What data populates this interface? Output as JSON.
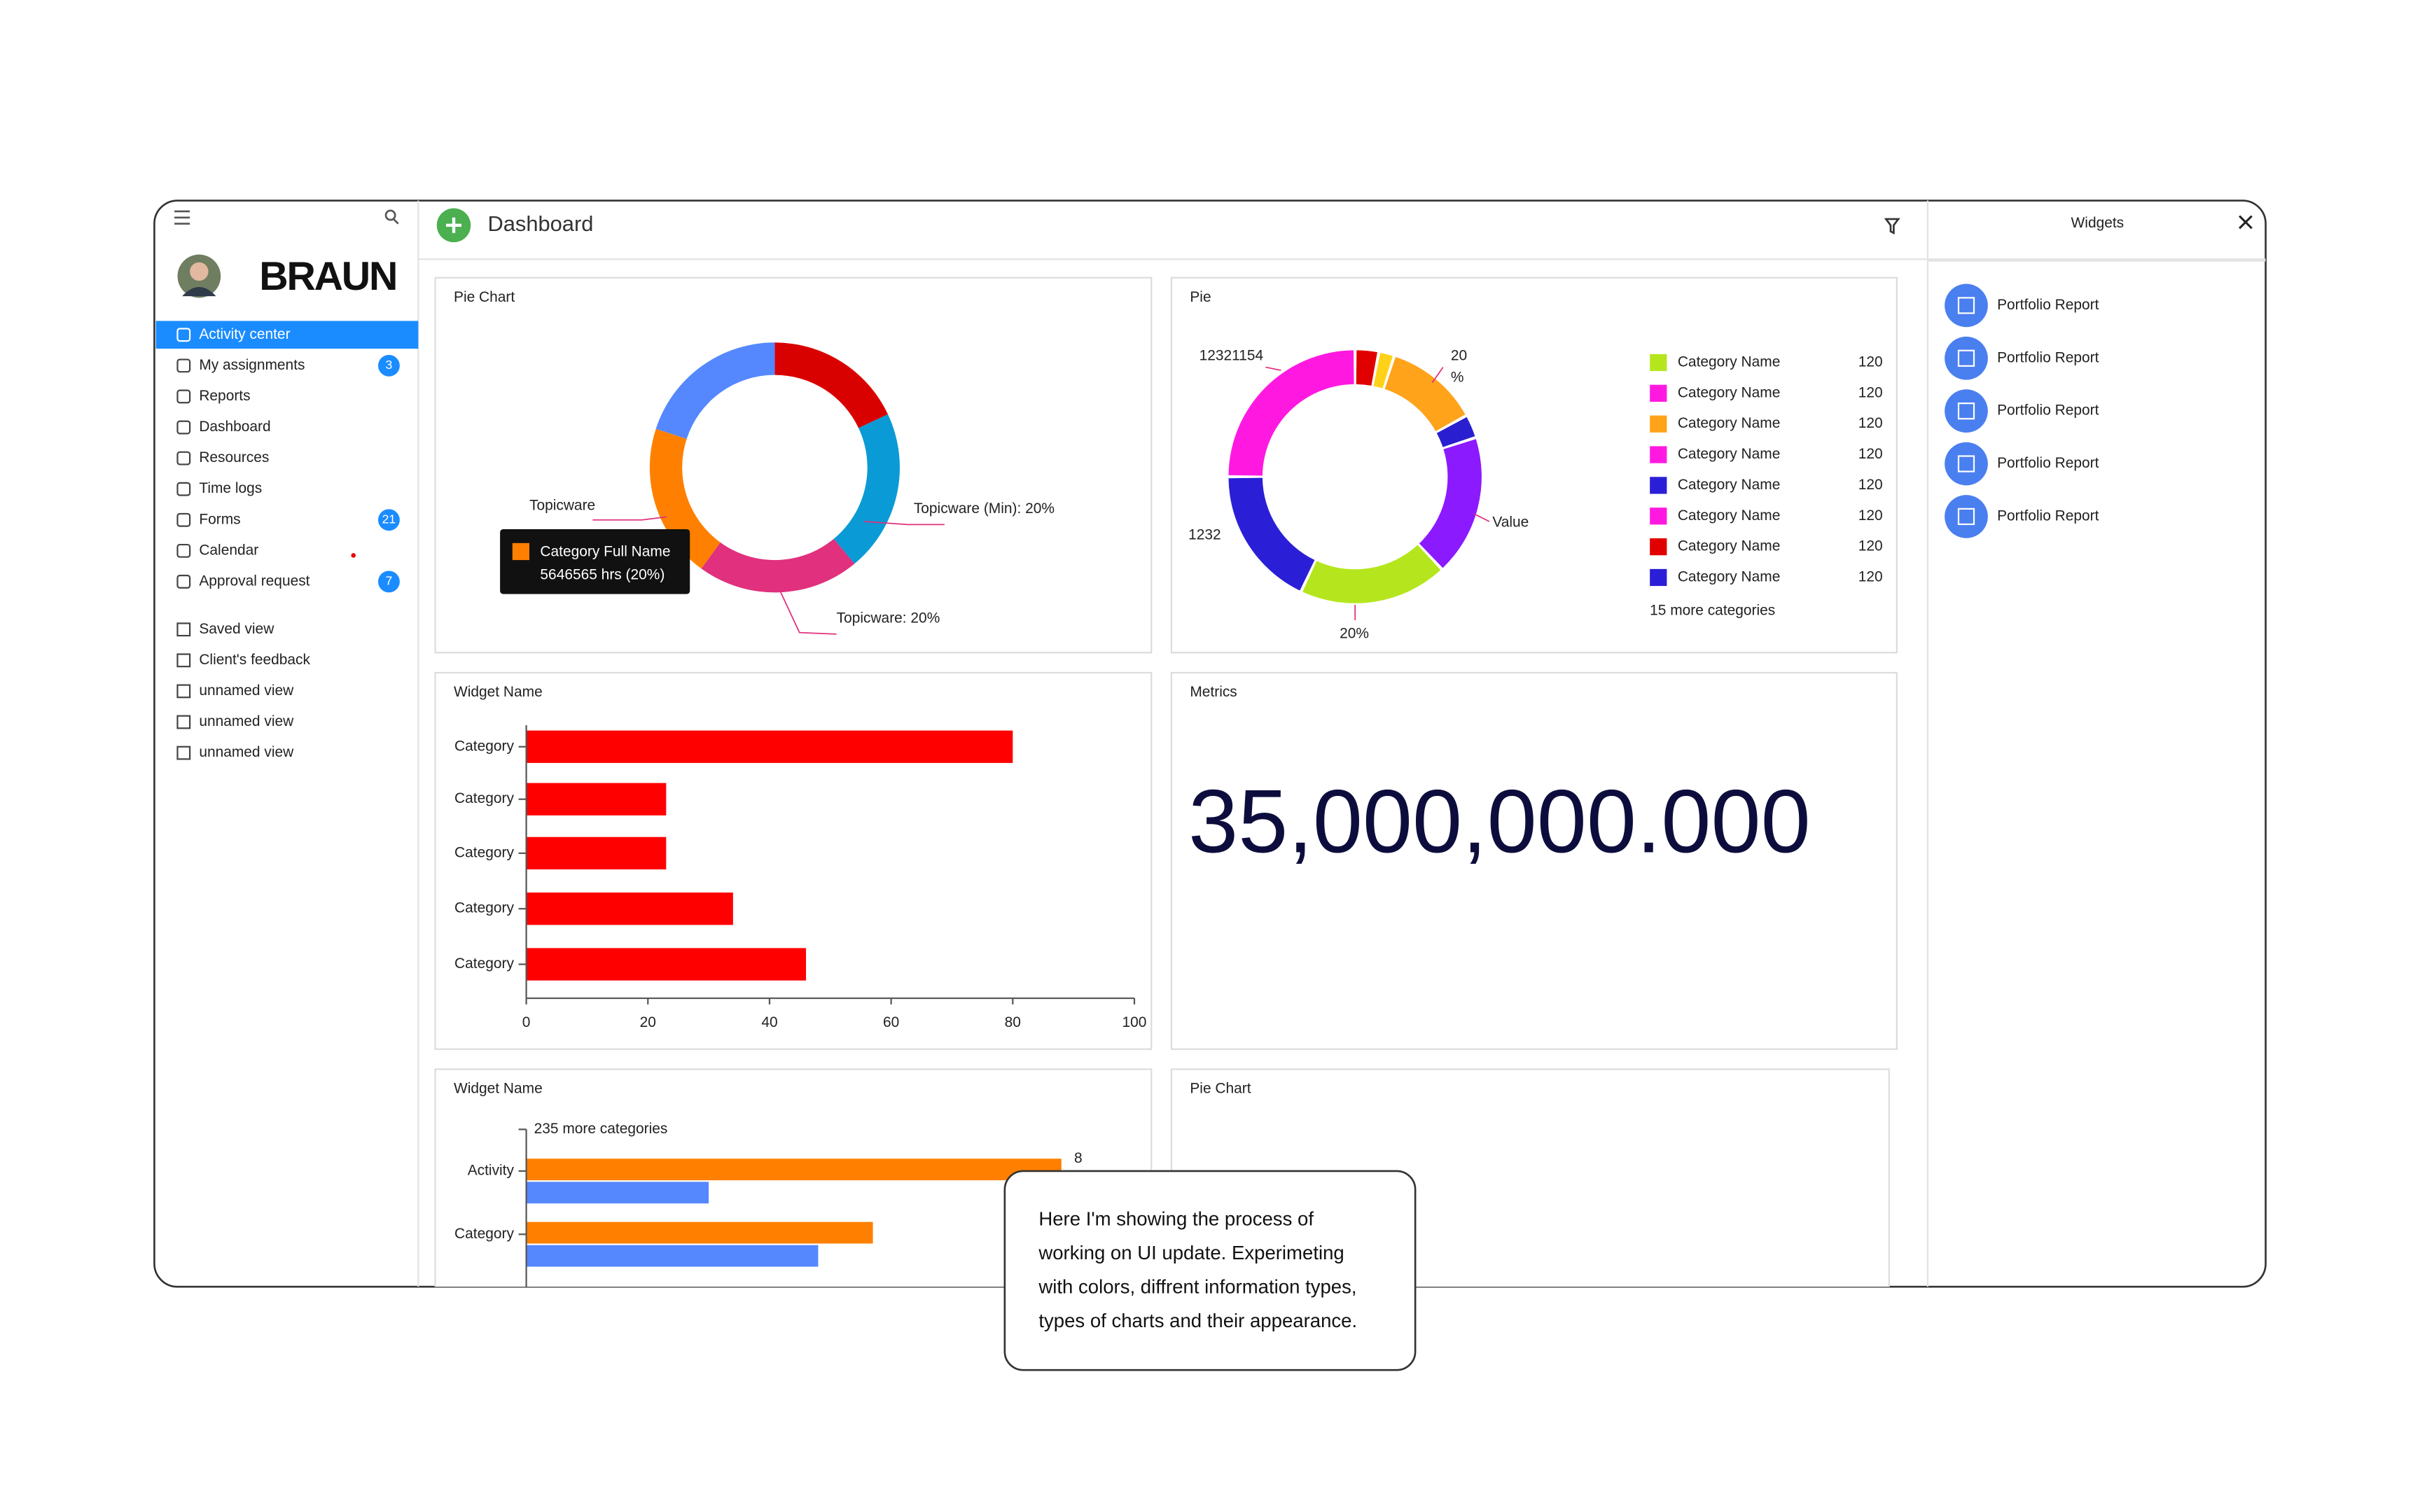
{
  "brand": "BRAUN",
  "header": {
    "title": "Dashboard"
  },
  "sidebar": {
    "nav": [
      {
        "label": "Activity center"
      },
      {
        "label": "My assignments",
        "badge": 3
      },
      {
        "label": "Reports"
      },
      {
        "label": "Dashboard"
      },
      {
        "label": "Resources"
      },
      {
        "label": "Time logs"
      },
      {
        "label": "Forms",
        "badge": 21
      },
      {
        "label": "Calendar"
      },
      {
        "label": "Approval request",
        "badge": 7
      }
    ],
    "views": [
      "Saved view",
      "Client's feedback",
      "unnamed view",
      "unnamed view",
      "unnamed view"
    ]
  },
  "widgets_panel": {
    "title": "Widgets",
    "items": [
      "Portfolio Report",
      "Portfolio Report",
      "Portfolio Report",
      "Portfolio Report",
      "Portfolio Report"
    ]
  },
  "chart_data": [
    {
      "type": "pie",
      "title": "Pie Chart",
      "values": [
        18,
        21,
        21,
        20,
        20
      ],
      "colors": [
        "#d90000",
        "#0a9ad6",
        "#e0307e",
        "#ff8000",
        "#5588ff"
      ],
      "annotations": [
        "Topicware (Min): 20%",
        "Topicware: 20%",
        "Topicware"
      ],
      "tooltip": {
        "title": "Category Full Name",
        "text": "5646565 hrs (20%)"
      }
    },
    {
      "type": "pie",
      "title": "Pie",
      "values": [
        3,
        2,
        12,
        3,
        18,
        19,
        18,
        25
      ],
      "colors": [
        "#e00000",
        "#ffd21a",
        "#ffa31a",
        "#2a1fd0",
        "#8c1aff",
        "#b5e61d",
        "#2a1fd6",
        "#ff19e0"
      ],
      "annotations": [
        "12321154",
        "20",
        "%",
        "1232",
        "Value",
        "20%"
      ],
      "legend": [
        {
          "name": "Category Name",
          "color": "#b5e61d",
          "value": 120
        },
        {
          "name": "Category Name",
          "color": "#ff19e0",
          "value": 120
        },
        {
          "name": "Category Name",
          "color": "#ffa31a",
          "value": 120
        },
        {
          "name": "Category Name",
          "color": "#ff19e0",
          "value": 120
        },
        {
          "name": "Category Name",
          "color": "#2a1fd6",
          "value": 120
        },
        {
          "name": "Category Name",
          "color": "#ff19e0",
          "value": 120
        },
        {
          "name": "Category Name",
          "color": "#e00000",
          "value": 120
        },
        {
          "name": "Category Name",
          "color": "#2a1fd6",
          "value": 120
        }
      ],
      "legend_more": "15 more categories"
    },
    {
      "type": "bar",
      "title": "Widget Name",
      "categories": [
        "Category",
        "Category",
        "Category",
        "Category",
        "Category"
      ],
      "values": [
        80,
        23,
        23,
        34,
        46
      ],
      "color": "#ff0000",
      "xlim": [
        0,
        100
      ],
      "xticks": [
        0,
        20,
        40,
        60,
        80,
        100
      ]
    },
    {
      "type": "bar",
      "title": "Widget Name",
      "categories": [
        "Activity",
        "Category"
      ],
      "series": [
        {
          "color": "#ff8000",
          "values": [
            88,
            57
          ]
        },
        {
          "color": "#5588ff",
          "values": [
            30,
            48
          ]
        }
      ],
      "xlim": [
        0,
        100
      ],
      "annotations": [
        "235 more categories",
        "8"
      ]
    }
  ],
  "metric": {
    "title": "Metrics",
    "value": "35,000,000.000"
  },
  "empty_widget": {
    "title": "Pie Chart"
  },
  "note": {
    "lines": [
      "Here I'm showing the process of",
      "working on UI update. Experimeting",
      "with colors, diffrent information types,",
      "types of charts and their appearance."
    ]
  }
}
